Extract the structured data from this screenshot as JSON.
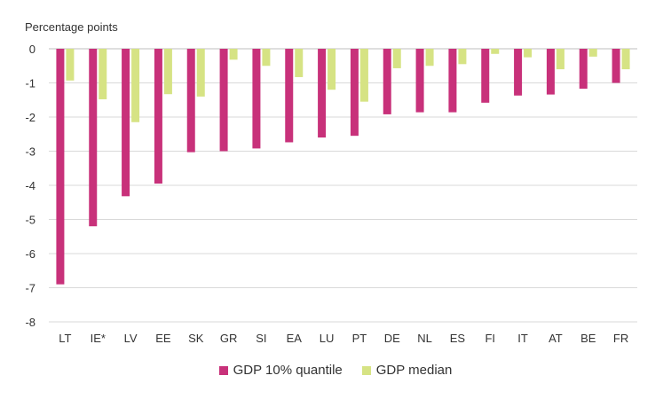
{
  "chart_data": {
    "type": "bar",
    "ylabel": "Percentage points",
    "ylim": [
      -8,
      0
    ],
    "yticks": [
      "0",
      "-1",
      "-2",
      "-3",
      "-4",
      "-5",
      "-6",
      "-7",
      "-8"
    ],
    "grid": true,
    "legend_position": "bottom-center",
    "categories": [
      "LT",
      "IE*",
      "LV",
      "EE",
      "SK",
      "GR",
      "SI",
      "EA",
      "LU",
      "PT",
      "DE",
      "NL",
      "ES",
      "FI",
      "IT",
      "AT",
      "BE",
      "FR"
    ],
    "series": [
      {
        "name": "GDP 10% quantile",
        "color": "#c8317a",
        "values": [
          -6.9,
          -5.2,
          -4.32,
          -3.95,
          -3.03,
          -3.0,
          -2.92,
          -2.74,
          -2.6,
          -2.55,
          -1.92,
          -1.86,
          -1.86,
          -1.58,
          -1.37,
          -1.34,
          -1.17,
          -1.0
        ]
      },
      {
        "name": "GDP median",
        "color": "#d6e384",
        "values": [
          -0.93,
          -1.48,
          -2.15,
          -1.33,
          -1.4,
          -0.32,
          -0.5,
          -0.83,
          -1.2,
          -1.55,
          -0.57,
          -0.5,
          -0.45,
          -0.15,
          -0.25,
          -0.6,
          -0.23,
          -0.6
        ]
      }
    ]
  }
}
